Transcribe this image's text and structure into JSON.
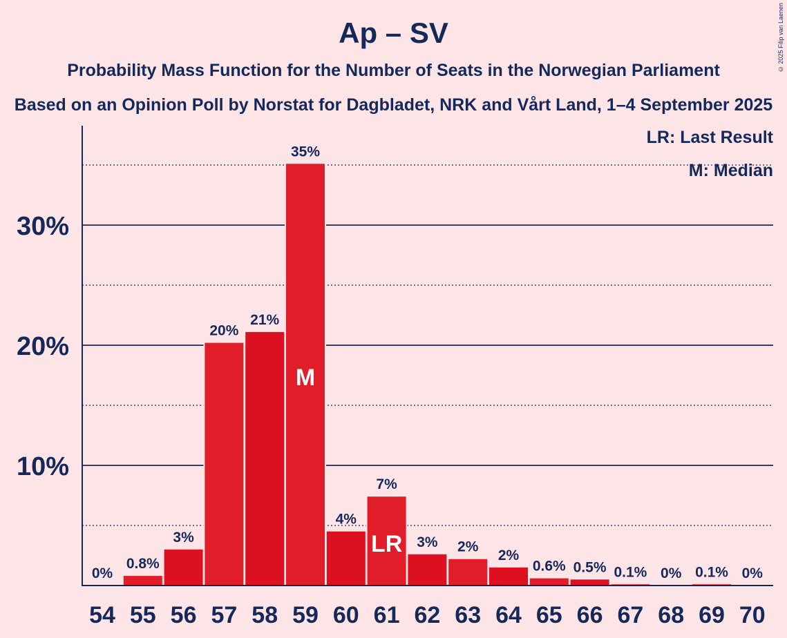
{
  "title": "Ap – SV",
  "subtitle": "Probability Mass Function for the Number of Seats in the Norwegian Parliament",
  "subsubtitle": "Based on an Opinion Poll by Norstat for Dagbladet, NRK and Vårt Land, 1–4 September 2025",
  "copyright": "© 2025 Filip van Laenen",
  "legend": {
    "last_result": "LR: Last Result",
    "median": "M: Median"
  },
  "colors": {
    "background": "#fde4e6",
    "bar": "#dc1020",
    "bar_alt": "#e11d29",
    "text": "#14285a"
  },
  "chart_data": {
    "type": "bar",
    "categories": [
      "54",
      "55",
      "56",
      "57",
      "58",
      "59",
      "60",
      "61",
      "62",
      "63",
      "64",
      "65",
      "66",
      "67",
      "68",
      "69",
      "70"
    ],
    "values": [
      0,
      0.8,
      3.0,
      20.2,
      21.1,
      35.1,
      4.5,
      7.4,
      2.6,
      2.2,
      1.5,
      0.6,
      0.5,
      0.1,
      0,
      0.1,
      0
    ],
    "labels": [
      "0%",
      "0.8%",
      "3%",
      "20%",
      "21%",
      "35%",
      "4%",
      "7%",
      "3%",
      "2%",
      "2%",
      "0.6%",
      "0.5%",
      "0.1%",
      "0%",
      "0.1%",
      "0%"
    ],
    "ylim": [
      0,
      38
    ],
    "yticks": [
      10,
      20,
      30
    ],
    "ytick_labels": [
      "10%",
      "20%",
      "30%"
    ],
    "minor_gridlines": [
      5,
      15,
      25,
      35
    ],
    "median_category": "59",
    "median_marker": "M",
    "last_result_category": "61",
    "last_result_marker": "LR",
    "grid": true,
    "legend_position": "top-right"
  }
}
